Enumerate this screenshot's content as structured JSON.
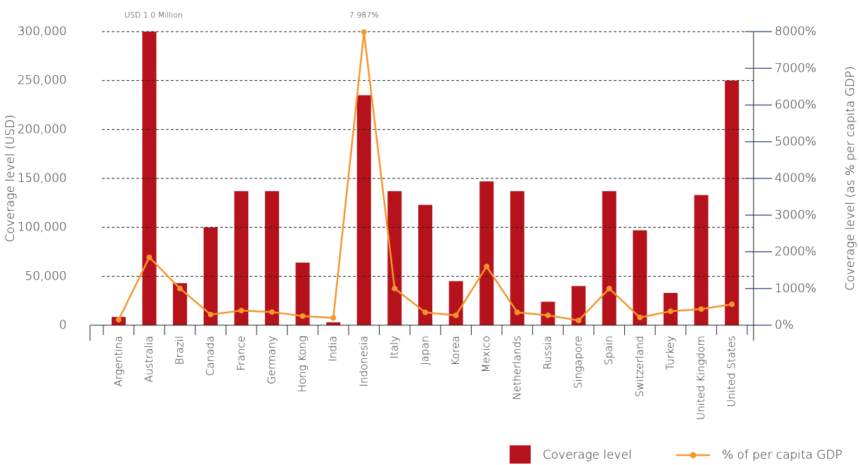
{
  "chart_data": {
    "type": "bar-line",
    "y_label": "Coverage level (USD)",
    "y2_label": "Coverage level (as % per capita GDP)",
    "categories": [
      "Argentina",
      "Australia",
      "Brazil",
      "Canada",
      "France",
      "Germany",
      "Hong Kong",
      "India",
      "Indonesia",
      "Italy",
      "Japan",
      "Korea",
      "Mexico",
      "Netherlands",
      "Russia",
      "Singapore",
      "Spain",
      "Switzerland",
      "Turkey",
      "United Kingdom",
      "United States"
    ],
    "series": [
      {
        "name": "Coverage level",
        "type": "bar",
        "color": "#b5121b",
        "values": [
          8500,
          1000000,
          43000,
          100000,
          137000,
          137000,
          64000,
          3000,
          235000,
          137000,
          123000,
          45000,
          147000,
          137000,
          24000,
          40000,
          137000,
          97000,
          33000,
          133000,
          250000
        ],
        "value_labels": [
          null,
          "USD 1.0 Million",
          null,
          null,
          null,
          null,
          null,
          null,
          null,
          null,
          null,
          null,
          null,
          null,
          null,
          null,
          null,
          null,
          null,
          null,
          null
        ]
      },
      {
        "name": "% of per capita GDP",
        "type": "line",
        "axis": "y2",
        "color": "#f5962e",
        "values": [
          150,
          1850,
          1000,
          290,
          400,
          360,
          250,
          200,
          7987,
          1000,
          350,
          270,
          1600,
          350,
          270,
          130,
          1000,
          210,
          380,
          440,
          570
        ],
        "value_labels": [
          null,
          null,
          null,
          null,
          null,
          null,
          null,
          null,
          "7.987%",
          null,
          null,
          null,
          null,
          null,
          null,
          null,
          null,
          null,
          null,
          null,
          null
        ]
      }
    ],
    "ylim": [
      0,
      300000
    ],
    "yticks": [
      0,
      {
        "value": 50000,
        "label": "50,000"
      },
      {
        "value": 100000,
        "label": "100,000"
      },
      {
        "value": 150000,
        "label": "150,000"
      },
      {
        "value": 200000,
        "label": "200,000"
      },
      {
        "value": 250000,
        "label": "250,000"
      },
      {
        "value": 300000,
        "label": "300,000"
      }
    ],
    "y2lim": [
      0,
      8000
    ],
    "y2ticks": [
      {
        "value": 0,
        "label": "0%"
      },
      {
        "value": 1000,
        "label": "1000%"
      },
      {
        "value": 2000,
        "label": "2000%"
      },
      {
        "value": 3000,
        "label": "3000%"
      },
      {
        "value": 4000,
        "label": "4000%"
      },
      {
        "value": 5000,
        "label": "5000%"
      },
      {
        "value": 6000,
        "label": "6000%"
      },
      {
        "value": 7000,
        "label": "7000%"
      },
      {
        "value": 8000,
        "label": "8000%"
      }
    ],
    "grid": true
  }
}
